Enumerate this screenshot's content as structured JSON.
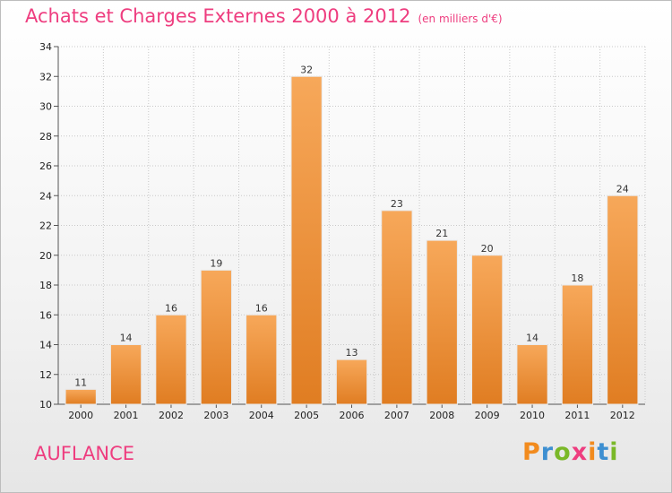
{
  "header": {
    "title": "Achats et Charges Externes 2000 à 2012",
    "subtitle": "(en milliers d'€)"
  },
  "footer": {
    "town": "AUFLANCE",
    "brand": "Proxiti",
    "brand_letters": [
      "P",
      "r",
      "o",
      "x",
      "i",
      "t",
      "i"
    ],
    "brand_colors": [
      "#f28b1e",
      "#3d8fd1",
      "#7ab828",
      "#ee3d7f",
      "#f28b1e",
      "#3d8fd1",
      "#7ab828"
    ]
  },
  "colors": {
    "bar_top": "#f7a85a",
    "bar_bottom": "#e07d22",
    "title": "#ee3d7f"
  },
  "chart_data": {
    "type": "bar",
    "title": "Achats et Charges Externes 2000 à 2012",
    "subtitle": "(en milliers d'€)",
    "categories": [
      "2000",
      "2001",
      "2002",
      "2003",
      "2004",
      "2005",
      "2006",
      "2007",
      "2008",
      "2009",
      "2010",
      "2011",
      "2012"
    ],
    "values": [
      11,
      14,
      16,
      19,
      16,
      32,
      13,
      23,
      21,
      20,
      14,
      18,
      24
    ],
    "ylim": [
      10,
      34
    ],
    "yticks": [
      10,
      12,
      14,
      16,
      18,
      20,
      22,
      24,
      26,
      28,
      30,
      32,
      34
    ],
    "grid": true,
    "legend": "none"
  }
}
